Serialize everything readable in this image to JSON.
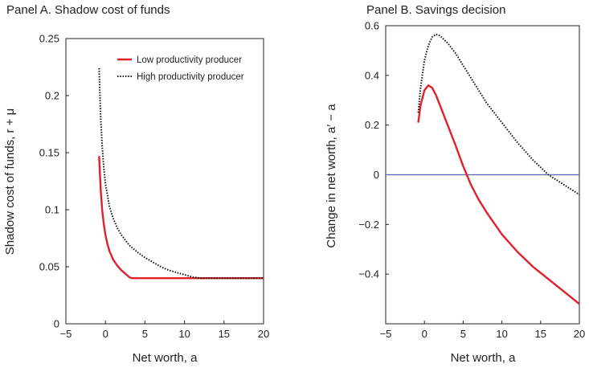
{
  "chart_data": [
    {
      "type": "line",
      "title": "Panel A. Shadow cost of funds",
      "xlabel": "Net worth, a",
      "ylabel": "Shadow cost of funds, r + μ",
      "xlim": [
        -5,
        20
      ],
      "ylim": [
        0,
        0.25
      ],
      "xticks": [
        "−5",
        "0",
        "5",
        "10",
        "15",
        "20"
      ],
      "yticks": [
        "0",
        "0.05",
        "0.1",
        "0.15",
        "0.2",
        "0.25"
      ],
      "legend_position": "top-right",
      "series": [
        {
          "name": "Low productivity producer",
          "color": "#e0202a",
          "style": "solid",
          "x": [
            -0.8,
            -0.6,
            -0.4,
            -0.2,
            0,
            0.25,
            0.5,
            0.75,
            1,
            1.5,
            2,
            2.5,
            3,
            3.3,
            3.6,
            5,
            10,
            15,
            20
          ],
          "y": [
            0.147,
            0.118,
            0.099,
            0.087,
            0.078,
            0.07,
            0.064,
            0.06,
            0.056,
            0.051,
            0.047,
            0.044,
            0.041,
            0.04,
            0.04,
            0.04,
            0.04,
            0.04,
            0.04
          ]
        },
        {
          "name": "High productivity producer",
          "color": "#111111",
          "style": "dotted",
          "x": [
            -0.8,
            -0.6,
            -0.4,
            -0.2,
            0,
            0.5,
            1,
            1.5,
            2,
            3,
            4,
            5,
            6,
            7,
            8,
            9,
            10,
            11,
            12,
            15,
            20
          ],
          "y": [
            0.224,
            0.18,
            0.155,
            0.136,
            0.123,
            0.103,
            0.092,
            0.084,
            0.078,
            0.069,
            0.063,
            0.058,
            0.054,
            0.05,
            0.047,
            0.045,
            0.043,
            0.041,
            0.04,
            0.04,
            0.04
          ]
        }
      ]
    },
    {
      "type": "line",
      "title": "Panel B. Savings decision",
      "xlabel": "Net worth, a",
      "ylabel": "Change in net worth, a′ − a",
      "xlim": [
        -5,
        20
      ],
      "ylim": [
        -0.6,
        0.6
      ],
      "xticks": [
        "−5",
        "0",
        "5",
        "10",
        "15",
        "20"
      ],
      "yticks": [
        "−0.4",
        "−0.2",
        "0",
        "0.2",
        "0.4",
        "0.6"
      ],
      "reference_line": {
        "y": 0,
        "color": "#5566aa"
      },
      "series": [
        {
          "name": "Low productivity producer",
          "color": "#e0202a",
          "style": "solid",
          "x": [
            -0.8,
            -0.5,
            0,
            0.5,
            1,
            1.5,
            2,
            3,
            4,
            5,
            6,
            7,
            8,
            10,
            12,
            14,
            16,
            18,
            20
          ],
          "y": [
            0.21,
            0.28,
            0.34,
            0.36,
            0.35,
            0.32,
            0.28,
            0.2,
            0.12,
            0.035,
            -0.04,
            -0.1,
            -0.15,
            -0.24,
            -0.31,
            -0.37,
            -0.42,
            -0.47,
            -0.52
          ]
        },
        {
          "name": "High productivity producer",
          "color": "#111111",
          "style": "dotted",
          "x": [
            -0.8,
            -0.5,
            0,
            0.5,
            1,
            1.5,
            2,
            3,
            4,
            5,
            6,
            7,
            8,
            10,
            12,
            14,
            16,
            18,
            20
          ],
          "y": [
            0.25,
            0.35,
            0.46,
            0.52,
            0.555,
            0.565,
            0.56,
            0.53,
            0.49,
            0.44,
            0.39,
            0.34,
            0.29,
            0.21,
            0.13,
            0.06,
            0.0,
            -0.04,
            -0.08
          ]
        }
      ]
    }
  ]
}
